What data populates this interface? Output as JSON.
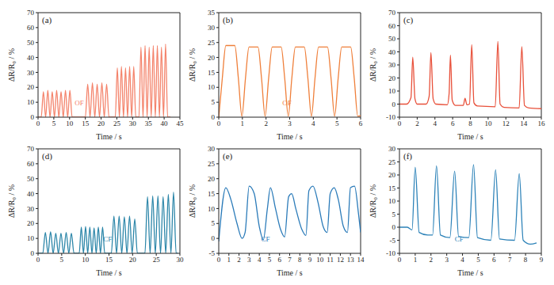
{
  "chart_data": [
    {
      "type": "line",
      "title": "(a)",
      "x_label": "Time / s",
      "y_label": "ΔR/R₀ / %",
      "annotations": [
        "OF"
      ],
      "color": "#f4836b",
      "x": [
        0,
        1,
        1.7,
        2.4,
        3.1,
        3.8,
        4.5,
        5.2,
        5.9,
        6.6,
        7.3,
        8.0,
        8.7,
        9.4,
        10.1,
        10.8,
        15,
        15.75,
        16.5,
        17.25,
        18,
        18.75,
        19.5,
        20.25,
        21,
        21.75,
        22.5,
        24.5,
        25.15,
        25.8,
        26.45,
        27.1,
        27.75,
        28.4,
        29.05,
        29.7,
        30.35,
        31,
        32,
        32.65,
        33.3,
        33.95,
        34.6,
        35.25,
        35.9,
        36.55,
        37.2,
        37.85,
        38.5,
        39.15,
        39.8,
        40.45,
        41.1,
        42
      ],
      "values": [
        0,
        0,
        17,
        0,
        18,
        0,
        17,
        0,
        18,
        0,
        17,
        0,
        18,
        0,
        18,
        0,
        0,
        22,
        0,
        23,
        0,
        22,
        0,
        23,
        0,
        22,
        0,
        0,
        33,
        0,
        34,
        0,
        33,
        0,
        34,
        0,
        34,
        0,
        0,
        47,
        0,
        48,
        0,
        47,
        0,
        48,
        0,
        48,
        0,
        47,
        0,
        49,
        0,
        0
      ],
      "xlim": [
        0,
        45
      ],
      "xticks": [
        0,
        5,
        10,
        15,
        20,
        25,
        30,
        35,
        40,
        45
      ],
      "ylim": [
        0,
        70
      ],
      "yticks": [
        0,
        10,
        20,
        30,
        40,
        50,
        60,
        70
      ]
    },
    {
      "type": "line",
      "title": "(b)",
      "x_label": "Time / s",
      "y_label": "ΔR/R₀ / %",
      "annotations": [
        "OF"
      ],
      "color": "#ef7f3a",
      "x": [
        0,
        0.15,
        0.3,
        0.68,
        0.83,
        0.98,
        1.13,
        1.28,
        1.66,
        1.81,
        1.96,
        2.11,
        2.26,
        2.64,
        2.79,
        2.94,
        3.09,
        3.24,
        3.62,
        3.77,
        3.92,
        4.07,
        4.22,
        4.6,
        4.75,
        4.9,
        5.05,
        5.2,
        5.58,
        5.73,
        5.88,
        6.0
      ],
      "values": [
        0,
        13,
        24,
        24,
        13,
        0.3,
        13,
        23.5,
        23.5,
        13,
        0.3,
        13,
        23.5,
        23.5,
        13,
        0.3,
        13,
        23.5,
        23.5,
        13,
        0.3,
        13,
        23.5,
        23.5,
        13,
        0.3,
        13,
        23.5,
        23.5,
        13,
        0.3,
        0.5
      ],
      "xlim": [
        0,
        6
      ],
      "xticks": [
        0,
        1,
        2,
        3,
        4,
        5,
        6
      ],
      "ylim": [
        0,
        35
      ],
      "yticks": [
        0,
        5,
        10,
        15,
        20,
        25,
        30,
        35
      ]
    },
    {
      "type": "line",
      "title": "(c)",
      "x_label": "Time / s",
      "y_label": "ΔR/R₀ / %",
      "color": "#e8503a",
      "x": [
        0,
        0.8,
        1.3,
        1.5,
        1.75,
        2.0,
        3.0,
        3.35,
        3.55,
        3.8,
        4.1,
        5.4,
        5.6,
        5.75,
        5.95,
        6.3,
        7.2,
        7.4,
        7.6,
        7.9,
        8.15,
        8.4,
        8.8,
        10.8,
        11.1,
        11.35,
        11.8,
        13.5,
        13.8,
        14.1,
        14.6,
        16
      ],
      "values": [
        0,
        0,
        5,
        36,
        4,
        0,
        0,
        6,
        39.5,
        4,
        0,
        -0.5,
        8,
        37.5,
        3,
        -1,
        -1,
        4.5,
        -0.5,
        0,
        45.5,
        1,
        -1.5,
        -2,
        48,
        0,
        -2.5,
        -3,
        44,
        -1,
        -3,
        -3.5
      ],
      "xlim": [
        0,
        16
      ],
      "xticks": [
        0,
        2,
        4,
        6,
        8,
        10,
        12,
        14,
        16
      ],
      "ylim": [
        -10,
        70
      ],
      "yticks": [
        -10,
        0,
        10,
        20,
        30,
        40,
        50,
        60,
        70
      ]
    },
    {
      "type": "line",
      "title": "(d)",
      "x_label": "Time / s",
      "y_label": "ΔR/R₀ / %",
      "annotations": [
        "CF"
      ],
      "color": "#2a85a8",
      "x": [
        0,
        1.0,
        1.55,
        2.1,
        2.65,
        3.2,
        3.75,
        4.3,
        4.85,
        5.4,
        5.95,
        6.5,
        7.05,
        7.6,
        8.7,
        9.15,
        9.6,
        10.05,
        10.5,
        10.95,
        11.4,
        11.85,
        12.3,
        12.75,
        13.2,
        13.65,
        14.1,
        15.5,
        16.05,
        16.6,
        17.15,
        17.7,
        18.25,
        18.8,
        19.35,
        19.9,
        20.45,
        21.0,
        22.6,
        23.15,
        23.7,
        24.25,
        24.8,
        25.35,
        25.9,
        26.45,
        27.0,
        27.55,
        28.1,
        28.65,
        29.2,
        29.6
      ],
      "values": [
        0,
        0,
        14,
        0,
        14.5,
        0,
        13.5,
        0,
        13.5,
        0,
        14,
        0,
        13.5,
        0,
        0,
        17.5,
        0,
        18,
        0,
        17.5,
        0,
        17,
        0,
        17.5,
        0,
        17.5,
        0,
        0,
        25,
        0,
        25,
        0,
        24.5,
        0,
        25,
        0,
        23,
        0,
        0,
        38,
        0,
        38.5,
        0,
        38.5,
        0,
        38,
        0,
        39.5,
        0,
        41,
        0,
        0
      ],
      "xlim": [
        0,
        30
      ],
      "xticks": [
        0,
        5,
        10,
        15,
        20,
        25,
        30
      ],
      "ylim": [
        0,
        70
      ],
      "yticks": [
        0,
        10,
        20,
        30,
        40,
        50,
        60,
        70
      ]
    },
    {
      "type": "line",
      "title": "(e)",
      "x_label": "Time / s",
      "y_label": "ΔR/R₀ / %",
      "annotations": [
        "CF"
      ],
      "color": "#2b7bb9",
      "x": [
        0,
        0.7,
        1.2,
        1.8,
        2.3,
        2.6,
        3.0,
        3.5,
        4.0,
        4.4,
        4.8,
        5.1,
        5.6,
        6.1,
        6.5,
        6.9,
        7.2,
        7.6,
        8.2,
        8.6,
        8.9,
        9.3,
        9.8,
        10.3,
        10.7,
        11.0,
        11.4,
        11.8,
        12.3,
        12.7,
        13.0,
        13.4,
        13.8,
        14
      ],
      "values": [
        -1,
        17,
        13,
        5,
        0,
        2,
        17.5,
        15,
        4,
        -0.5,
        10,
        17,
        10,
        3,
        0.5,
        14,
        15,
        10,
        3,
        1,
        16,
        17.5,
        12,
        4,
        2,
        15,
        17,
        13,
        4,
        2,
        17,
        17.5,
        8,
        2
      ],
      "xlim": [
        0,
        14
      ],
      "xticks": [
        0,
        1,
        2,
        3,
        4,
        5,
        6,
        7,
        8,
        9,
        10,
        11,
        12,
        13,
        14
      ],
      "ylim": [
        -5,
        30
      ],
      "yticks": [
        -5,
        0,
        5,
        10,
        15,
        20,
        25,
        30
      ]
    },
    {
      "type": "line",
      "title": "(f)",
      "x_label": "Time / s",
      "y_label": "ΔR/R₀ / %",
      "annotations": [
        "CF"
      ],
      "color": "#2c82b8",
      "x": [
        0,
        0.5,
        0.8,
        1.0,
        1.25,
        1.8,
        2.1,
        2.35,
        2.6,
        3.2,
        3.5,
        3.75,
        4.4,
        4.7,
        4.95,
        5.8,
        6.1,
        6.35,
        7.3,
        7.6,
        7.85,
        8.3,
        8.7
      ],
      "values": [
        0,
        0,
        -1,
        23,
        -2,
        -3,
        -3,
        23.5,
        -3,
        -4,
        21.5,
        -3.5,
        -4,
        24,
        -4,
        -5,
        22,
        -4.5,
        -5,
        20.5,
        -5,
        -6.5,
        -6
      ],
      "xlim": [
        0,
        9
      ],
      "xticks": [
        0,
        1,
        2,
        3,
        4,
        5,
        6,
        7,
        8,
        9
      ],
      "ylim": [
        -10,
        30
      ],
      "yticks": [
        -10,
        -5,
        0,
        5,
        10,
        15,
        20,
        25,
        30
      ]
    }
  ]
}
